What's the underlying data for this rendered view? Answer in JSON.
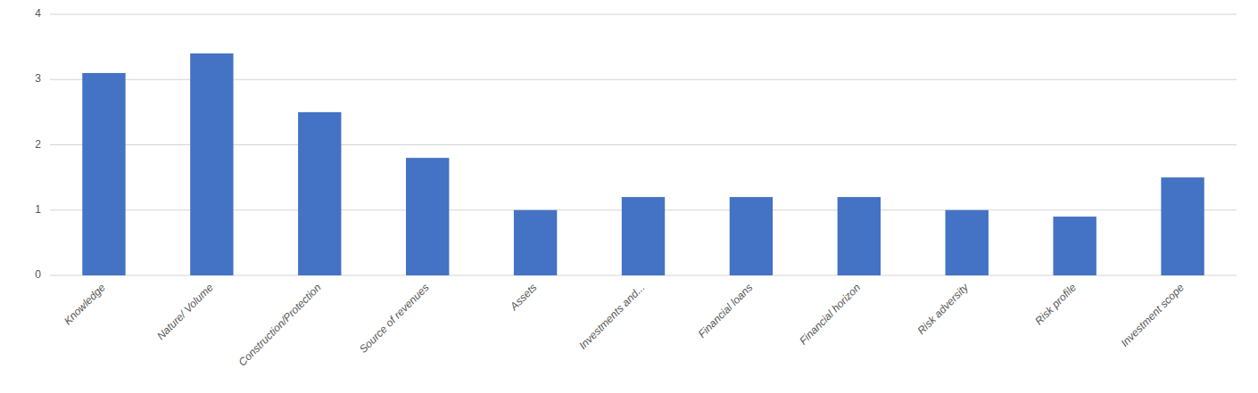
{
  "chart_data": {
    "type": "bar",
    "categories": [
      "Knowledge",
      "Nature/ Volume",
      "Construction/Protection",
      "Source of revenues",
      "Assets",
      "Investments and...",
      "Financial loans",
      "Financial horizon",
      "Risk adversity",
      "Risk profile",
      "Investment scope"
    ],
    "values": [
      3.1,
      3.4,
      2.5,
      1.8,
      1.0,
      1.2,
      1.2,
      1.2,
      1.0,
      0.9,
      1.5
    ],
    "color": "#4472C4",
    "ylim": [
      0,
      4
    ],
    "yticks": [
      0,
      1,
      2,
      3,
      4
    ],
    "grid": true
  }
}
